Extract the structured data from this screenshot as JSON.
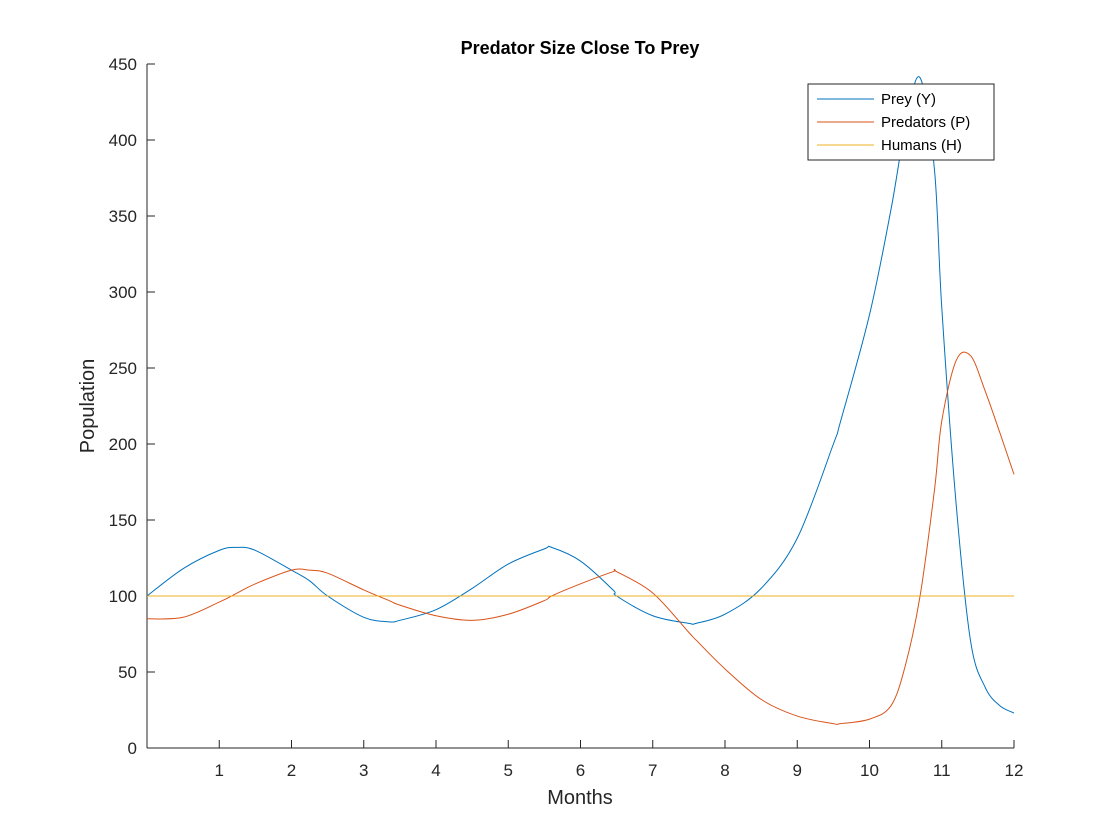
{
  "chart_data": {
    "type": "line",
    "title": "Predator Size Close To Prey",
    "xlabel": "Months",
    "ylabel": "Population",
    "xlim": [
      0,
      12
    ],
    "ylim": [
      0,
      450
    ],
    "xticks": [
      1,
      2,
      3,
      4,
      5,
      6,
      7,
      8,
      9,
      10,
      11,
      12
    ],
    "yticks": [
      0,
      50,
      100,
      150,
      200,
      250,
      300,
      350,
      400,
      450
    ],
    "grid": false,
    "legend_position": "top-right",
    "x": [
      0,
      0.5,
      1,
      1.25,
      1.5,
      2,
      2.25,
      2.5,
      3,
      3.35,
      3.5,
      4,
      4.5,
      5,
      5.5,
      5.6,
      6,
      6.45,
      6.5,
      7,
      7.5,
      7.6,
      8,
      8.5,
      9,
      9.5,
      9.6,
      10,
      10.3,
      10.5,
      10.7,
      10.9,
      11,
      11.2,
      11.4,
      11.6,
      11.8,
      12
    ],
    "series": [
      {
        "name": "Prey (Y)",
        "color": "#0072BD",
        "values": [
          100,
          118,
          130,
          132,
          130,
          117,
          110,
          100,
          86,
          83,
          84,
          91,
          105,
          121,
          131,
          132,
          123,
          104,
          100,
          87,
          82,
          82,
          88,
          105,
          138,
          200,
          215,
          285,
          355,
          410,
          441,
          380,
          290,
          160,
          70,
          40,
          28,
          23
        ]
      },
      {
        "name": "Predators (P)",
        "color": "#D95319",
        "values": [
          85,
          86,
          96,
          102,
          108,
          117,
          117,
          115,
          104,
          97,
          94,
          87,
          84,
          88,
          97,
          100,
          108,
          116,
          116,
          102,
          76,
          71,
          52,
          32,
          21,
          16,
          16,
          19,
          28,
          55,
          100,
          170,
          215,
          255,
          258,
          235,
          208,
          180
        ]
      },
      {
        "name": "Humans (H)",
        "color": "#EDB120",
        "values": [
          100,
          100,
          100,
          100,
          100,
          100,
          100,
          100,
          100,
          100,
          100,
          100,
          100,
          100,
          100,
          100,
          100,
          100,
          100,
          100,
          100,
          100,
          100,
          100,
          100,
          100,
          100,
          100,
          100,
          100,
          100,
          100,
          100,
          100,
          100,
          100,
          100,
          100
        ]
      }
    ]
  }
}
